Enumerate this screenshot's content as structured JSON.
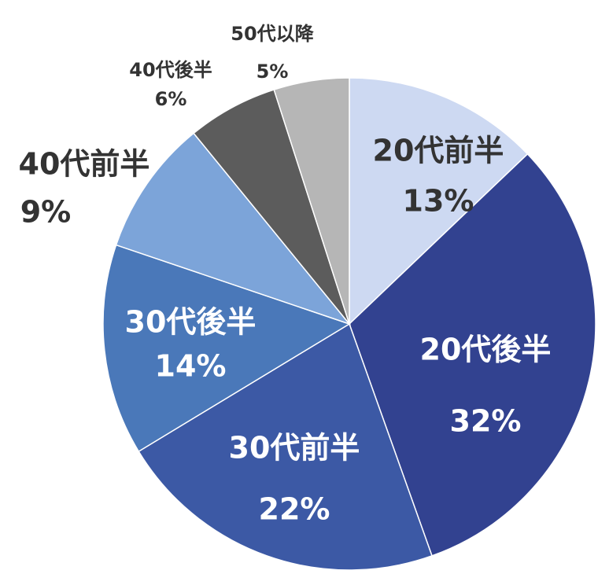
{
  "chart_data": {
    "type": "pie",
    "start_angle": "12 o'clock",
    "direction": "clockwise",
    "legend": "none",
    "slices": [
      {
        "label": "20代前半",
        "value_label": "13%",
        "value": 13,
        "color": "#cdd9f2",
        "text_color": "#333333"
      },
      {
        "label": "20代後半",
        "value_label": "32%",
        "value": 32,
        "color": "#324290",
        "text_color": "#ffffff"
      },
      {
        "label": "30代前半",
        "value_label": "22%",
        "value": 22,
        "color": "#3c59a5",
        "text_color": "#ffffff"
      },
      {
        "label": "30代後半",
        "value_label": "14%",
        "value": 14,
        "color": "#4a78b9",
        "text_color": "#ffffff"
      },
      {
        "label": "40代前半",
        "value_label": "9%",
        "value": 9,
        "color": "#7ca4d9",
        "text_color": "#333333"
      },
      {
        "label": "40代後半",
        "value_label": "6%",
        "value": 6,
        "color": "#5c5c5c",
        "text_color": "#333333"
      },
      {
        "label": "50代以降",
        "value_label": "5%",
        "value": 5,
        "color": "#b6b6b6",
        "text_color": "#333333"
      }
    ]
  }
}
